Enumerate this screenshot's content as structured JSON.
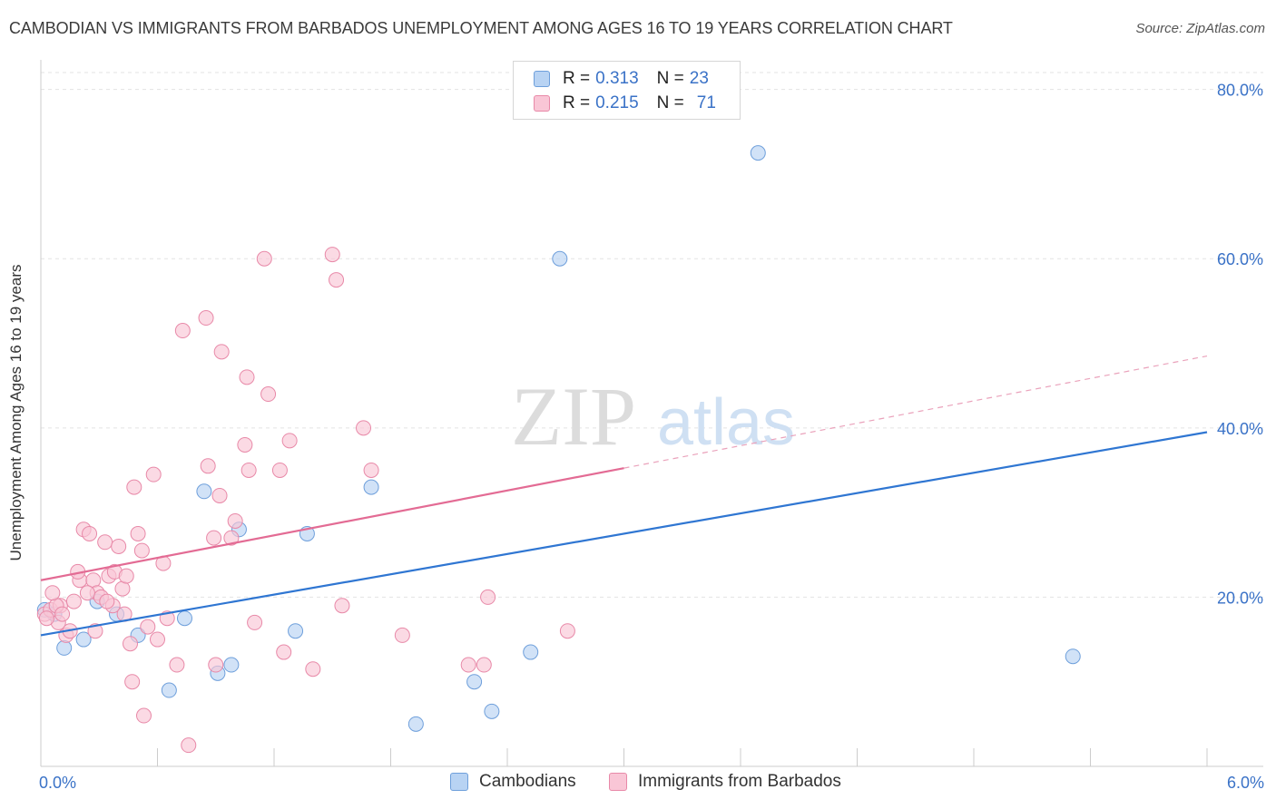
{
  "title": "CAMBODIAN VS IMMIGRANTS FROM BARBADOS UNEMPLOYMENT AMONG AGES 16 TO 19 YEARS CORRELATION CHART",
  "source": "Source: ZipAtlas.com",
  "watermark": {
    "zip": "ZIP",
    "atlas": "atlas"
  },
  "legend": {
    "rows": [
      {
        "r_label": "R = ",
        "r_value": "0.313",
        "n_label": "N = ",
        "n_value": "23",
        "color": "#6e9fdb"
      },
      {
        "r_label": "R = ",
        "r_value": "0.215",
        "n_label": "N = ",
        "n_value": "71",
        "color": "#e889a8"
      }
    ]
  },
  "bottom_legend": {
    "series1": "Cambodians",
    "series2": "Immigrants from Barbados"
  },
  "chart_data": {
    "type": "scatter",
    "title": "CAMBODIAN VS IMMIGRANTS FROM BARBADOS UNEMPLOYMENT AMONG AGES 16 TO 19 YEARS CORRELATION CHART",
    "xlabel": "",
    "ylabel": "Unemployment Among Ages 16 to 19 years",
    "xlim": [
      0,
      6
    ],
    "ylim": [
      0,
      82
    ],
    "x_tick_labels": [
      "0.0%",
      "6.0%"
    ],
    "y_ticks": [
      20,
      40,
      60,
      80
    ],
    "y_tick_labels": [
      "20.0%",
      "40.0%",
      "60.0%",
      "80.0%"
    ],
    "series": [
      {
        "name": "Cambodians",
        "color": "#6e9fdb",
        "fill": "#b8d3f3",
        "trend": {
          "x0": 0,
          "y0": 15.5,
          "x1": 6,
          "y1": 39.5,
          "solid_to": 6
        },
        "points": [
          [
            0.02,
            18.5
          ],
          [
            0.07,
            18.0
          ],
          [
            0.12,
            14.0
          ],
          [
            0.22,
            15.0
          ],
          [
            0.29,
            19.5
          ],
          [
            0.39,
            18.0
          ],
          [
            0.5,
            15.5
          ],
          [
            0.74,
            17.5
          ],
          [
            0.84,
            32.5
          ],
          [
            0.91,
            11.0
          ],
          [
            1.02,
            28.0
          ],
          [
            0.98,
            12.0
          ],
          [
            1.31,
            16.0
          ],
          [
            1.37,
            27.5
          ],
          [
            1.7,
            33.0
          ],
          [
            1.93,
            5.0
          ],
          [
            2.67,
            60.0
          ],
          [
            2.23,
            10.0
          ],
          [
            2.32,
            6.5
          ],
          [
            2.52,
            13.5
          ],
          [
            3.69,
            72.5
          ],
          [
            5.31,
            13.0
          ],
          [
            0.66,
            9.0
          ]
        ]
      },
      {
        "name": "Immigrants from Barbados",
        "color": "#e889a8",
        "fill": "#f9c6d6",
        "trend": {
          "x0": 0,
          "y0": 22.0,
          "x1": 6,
          "y1": 48.5,
          "solid_to": 3.0
        },
        "points": [
          [
            0.02,
            18.0
          ],
          [
            0.05,
            18.5
          ],
          [
            0.09,
            17.0
          ],
          [
            0.1,
            19.0
          ],
          [
            0.13,
            15.5
          ],
          [
            0.17,
            19.5
          ],
          [
            0.2,
            22.0
          ],
          [
            0.22,
            28.0
          ],
          [
            0.25,
            27.5
          ],
          [
            0.27,
            22.0
          ],
          [
            0.29,
            20.5
          ],
          [
            0.31,
            20.0
          ],
          [
            0.33,
            26.5
          ],
          [
            0.35,
            22.5
          ],
          [
            0.37,
            19.0
          ],
          [
            0.4,
            26.0
          ],
          [
            0.42,
            21.0
          ],
          [
            0.46,
            14.5
          ],
          [
            0.48,
            33.0
          ],
          [
            0.5,
            27.5
          ],
          [
            0.52,
            25.5
          ],
          [
            0.55,
            16.5
          ],
          [
            0.58,
            34.5
          ],
          [
            0.63,
            24.0
          ],
          [
            0.7,
            12.0
          ],
          [
            0.73,
            51.5
          ],
          [
            0.76,
            2.5
          ],
          [
            0.85,
            53.0
          ],
          [
            0.86,
            35.5
          ],
          [
            0.89,
            27.0
          ],
          [
            0.9,
            12.0
          ],
          [
            0.92,
            32.0
          ],
          [
            0.93,
            49.0
          ],
          [
            0.98,
            27.0
          ],
          [
            1.0,
            29.0
          ],
          [
            1.05,
            38.0
          ],
          [
            1.06,
            46.0
          ],
          [
            1.07,
            35.0
          ],
          [
            1.1,
            17.0
          ],
          [
            1.15,
            60.0
          ],
          [
            1.17,
            44.0
          ],
          [
            1.23,
            35.0
          ],
          [
            1.25,
            13.5
          ],
          [
            1.28,
            38.5
          ],
          [
            1.4,
            11.5
          ],
          [
            1.5,
            60.5
          ],
          [
            1.52,
            57.5
          ],
          [
            1.55,
            19.0
          ],
          [
            1.66,
            40.0
          ],
          [
            1.7,
            35.0
          ],
          [
            1.86,
            15.5
          ],
          [
            2.2,
            12.0
          ],
          [
            2.28,
            12.0
          ],
          [
            2.3,
            20.0
          ],
          [
            2.71,
            16.0
          ],
          [
            0.15,
            16.0
          ],
          [
            0.08,
            19.0
          ],
          [
            0.11,
            18.0
          ],
          [
            0.19,
            23.0
          ],
          [
            0.24,
            20.5
          ],
          [
            0.28,
            16.0
          ],
          [
            0.34,
            19.5
          ],
          [
            0.38,
            23.0
          ],
          [
            0.44,
            22.5
          ],
          [
            0.47,
            10.0
          ],
          [
            0.53,
            6.0
          ],
          [
            0.6,
            15.0
          ],
          [
            0.65,
            17.5
          ],
          [
            0.03,
            17.5
          ],
          [
            0.06,
            20.5
          ],
          [
            0.43,
            18.0
          ]
        ]
      }
    ]
  }
}
